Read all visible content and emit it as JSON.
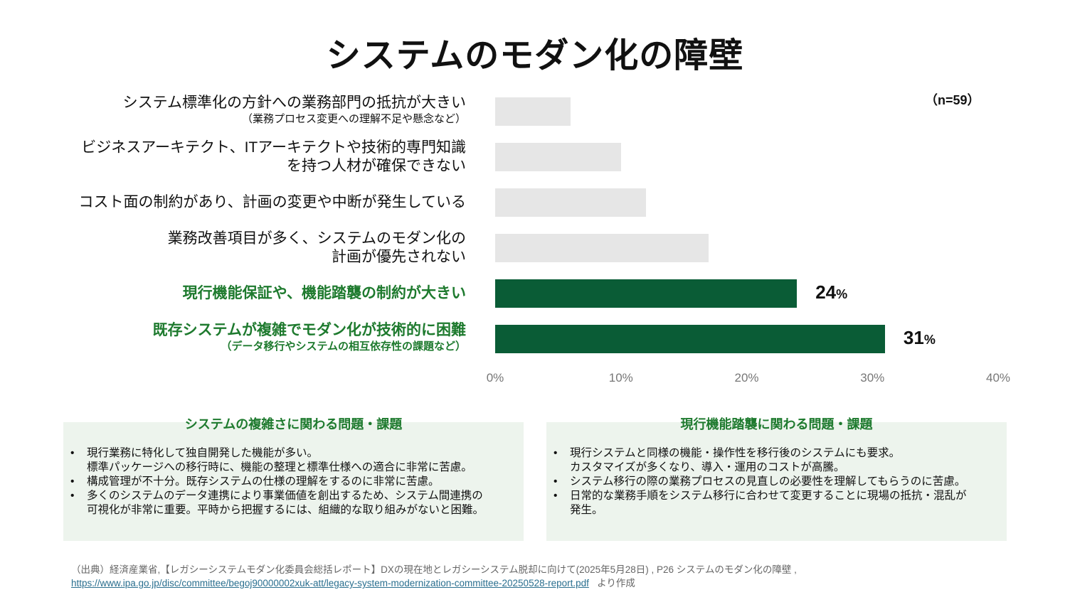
{
  "title": "システムのモダン化の障壁",
  "n_label": "（n=59）",
  "colors": {
    "highlight": "#0a5c36",
    "muted": "#e6e6e6",
    "label_highlight": "#1e7a2e"
  },
  "chart_data": {
    "type": "bar",
    "orientation": "horizontal",
    "title": "システムのモダン化の障壁",
    "categories": [
      {
        "main": "システム標準化の方針への業務部門の抵抗が大きい",
        "sub": "（業務プロセス変更への理解不足や懸念など）"
      },
      {
        "main": "ビジネスアーキテクト、ITアーキテクトや技術的専門知識",
        "sub2": "を持つ人材が確保できない"
      },
      {
        "main": "コスト面の制約があり、計画の変更や中断が発生している"
      },
      {
        "main": "業務改善項目が多く、システムのモダン化の",
        "sub2": "計画が優先されない"
      },
      {
        "main": "現行機能保証や、機能踏襲の制約が大きい"
      },
      {
        "main": "既存システムが複雑でモダン化が技術的に困難",
        "sub": "（データ移行やシステムの相互依存性の課題など）"
      }
    ],
    "values": [
      6,
      10,
      12,
      17,
      24,
      31
    ],
    "highlighted": [
      false,
      false,
      false,
      false,
      true,
      true
    ],
    "data_labels": [
      "",
      "",
      "",
      "",
      "24",
      "31"
    ],
    "unit": "%",
    "xlim": [
      0,
      40
    ],
    "xticks": [
      "0%",
      "10%",
      "20%",
      "30%",
      "40%"
    ]
  },
  "boxes": [
    {
      "title": "システムの複雑さに関わる問題・課題",
      "items": [
        [
          "現行業務に特化して独自開発した機能が多い。",
          "標準パッケージへの移行時に、機能の整理と標準仕様への適合に非常に苦慮。"
        ],
        [
          "構成管理が不十分。既存システムの仕様の理解をするのに非常に苦慮。"
        ],
        [
          "多くのシステムのデータ連携により事業価値を創出するため、システム間連携の",
          "可視化が非常に重要。平時から把握するには、組織的な取り組みがないと困難。"
        ]
      ]
    },
    {
      "title": "現行機能踏襲に関わる問題・課題",
      "items": [
        [
          "現行システムと同様の機能・操作性を移行後のシステムにも要求。",
          "カスタマイズが多くなり、導入・運用のコストが高騰。"
        ],
        [
          "システム移行の際の業務プロセスの見直しの必要性を理解してもらうのに苦慮。"
        ],
        [
          "日常的な業務手順をシステム移行に合わせて変更することに現場の抵抗・混乱が",
          "発生。"
        ]
      ]
    }
  ],
  "source": {
    "text": "（出典）経済産業省,【レガシーシステムモダン化委員会総括レポート】DXの現在地とレガシーシステム脱却に向けて(2025年5月28日) , P26 システムのモダン化の障壁 ,",
    "link": "https://www.ipa.go.jp/disc/committee/begoj90000002xuk-att/legacy-system-modernization-committee-20250528-report.pdf",
    "suffix": "より作成"
  }
}
